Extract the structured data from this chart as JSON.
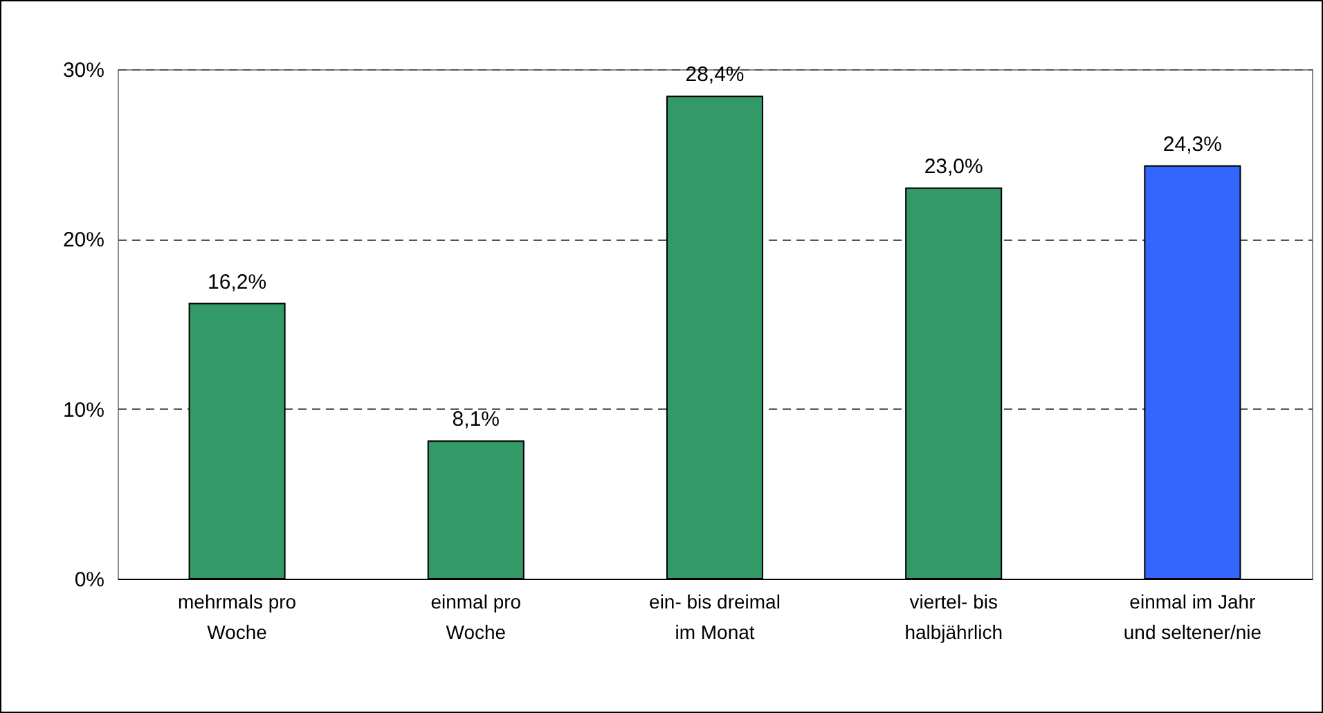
{
  "chart_data": {
    "type": "bar",
    "categories": [
      "mehrmals pro\nWoche",
      "einmal pro\nWoche",
      "ein- bis dreimal\nim Monat",
      "viertel- bis\nhalbjährlich",
      "einmal im Jahr\nund seltener/nie"
    ],
    "values": [
      16.2,
      8.1,
      28.4,
      23.0,
      24.3
    ],
    "colors": [
      "#339966",
      "#339966",
      "#339966",
      "#339966",
      "#3366ff"
    ],
    "value_labels": [
      "16,2%",
      "8,1%",
      "28,4%",
      "23,0%",
      "24,3%"
    ],
    "ylim": [
      0,
      30
    ],
    "yticks": [
      {
        "value": 0,
        "label": "0%"
      },
      {
        "value": 10,
        "label": "10%"
      },
      {
        "value": 20,
        "label": "20%"
      },
      {
        "value": 30,
        "label": "30%"
      }
    ],
    "grid": "y"
  }
}
